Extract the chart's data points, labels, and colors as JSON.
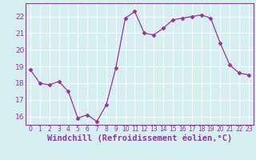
{
  "x": [
    0,
    1,
    2,
    3,
    4,
    5,
    6,
    7,
    8,
    9,
    10,
    11,
    12,
    13,
    14,
    15,
    16,
    17,
    18,
    19,
    20,
    21,
    22,
    23
  ],
  "y": [
    18.8,
    18.0,
    17.9,
    18.1,
    17.5,
    15.9,
    16.1,
    15.7,
    16.7,
    18.9,
    21.9,
    22.3,
    21.0,
    20.9,
    21.3,
    21.8,
    21.9,
    22.0,
    22.1,
    21.9,
    20.4,
    19.1,
    18.6,
    18.5
  ],
  "line_color": "#993399",
  "marker": "D",
  "marker_size": 2.5,
  "bg_color": "#d5eef0",
  "grid_color": "#ffffff",
  "xlabel": "Windchill (Refroidissement éolien,°C)",
  "xlabel_fontsize": 7.5,
  "tick_label_color": "#993399",
  "xlabel_color": "#993399",
  "ylim": [
    15.5,
    22.8
  ],
  "yticks": [
    16,
    17,
    18,
    19,
    20,
    21,
    22
  ],
  "xticks": [
    0,
    1,
    2,
    3,
    4,
    5,
    6,
    7,
    8,
    9,
    10,
    11,
    12,
    13,
    14,
    15,
    16,
    17,
    18,
    19,
    20,
    21,
    22,
    23
  ],
  "xlim": [
    -0.5,
    23.5
  ]
}
